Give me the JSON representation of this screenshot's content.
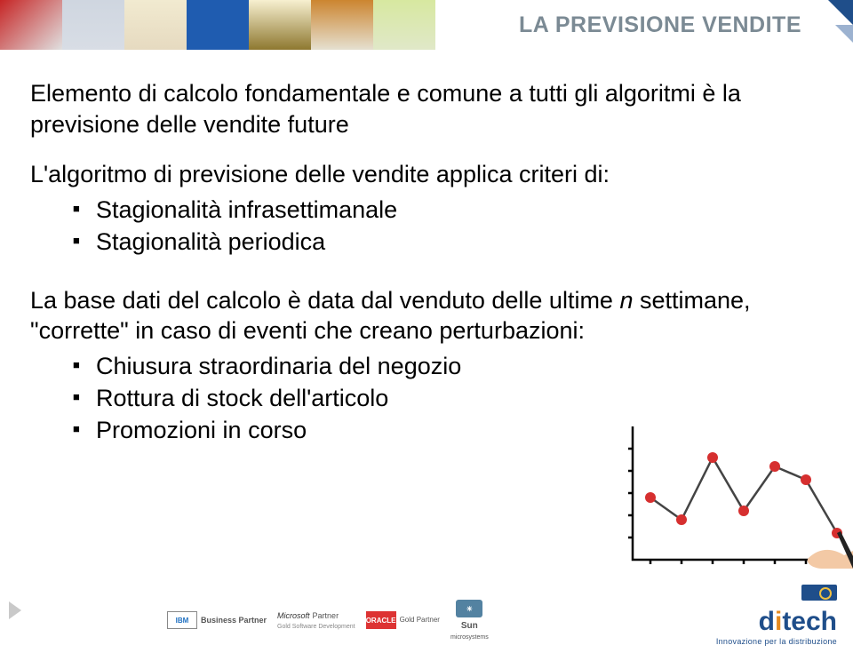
{
  "header": {
    "title": "LA PREVISIONE VENDITE"
  },
  "body": {
    "p1": "Elemento di calcolo fondamentale e comune a tutti gli algoritmi è la previsione delle vendite future",
    "p2": "L'algoritmo di previsione delle vendite applica criteri di:",
    "list1": {
      "i0": "Stagionalità infrasettimanale",
      "i1": "Stagionalità periodica"
    },
    "p3_a": "La base dati del calcolo è data dal venduto delle ultime ",
    "p3_n": "n",
    "p3_b": " settimane, \"corrette\" in caso di eventi che creano perturbazioni:",
    "list2": {
      "i0": "Chiusura straordinaria del negozio",
      "i1": "Rottura di stock dell'articolo",
      "i2": "Promozioni in corso"
    }
  },
  "chart": {
    "type": "line",
    "line_color": "#444444",
    "marker_color": "#d62f2f",
    "axis_color": "#000000",
    "marker_radius": 6,
    "line_width": 2.5,
    "xticks": [
      20,
      55,
      90,
      125,
      160,
      195,
      230
    ],
    "yticks": [
      25,
      50,
      75,
      100,
      125
    ],
    "points": [
      [
        20,
        70
      ],
      [
        55,
        45
      ],
      [
        90,
        115
      ],
      [
        125,
        55
      ],
      [
        160,
        105
      ],
      [
        195,
        90
      ],
      [
        230,
        30
      ]
    ]
  },
  "footer": {
    "partners": {
      "ibm": "IBM",
      "ibm_sub": "Business Partner",
      "ms": "Microsoft",
      "ms_sub": "Partner",
      "ms_sub2": "Gold Software Development",
      "oracle": "ORACLE",
      "oracle_sub": "Gold Partner",
      "sun": "Sun",
      "sun_sub": "microsystems"
    },
    "ditech": {
      "name": "ditech",
      "tagline": "Innovazione per la distribuzione"
    }
  }
}
